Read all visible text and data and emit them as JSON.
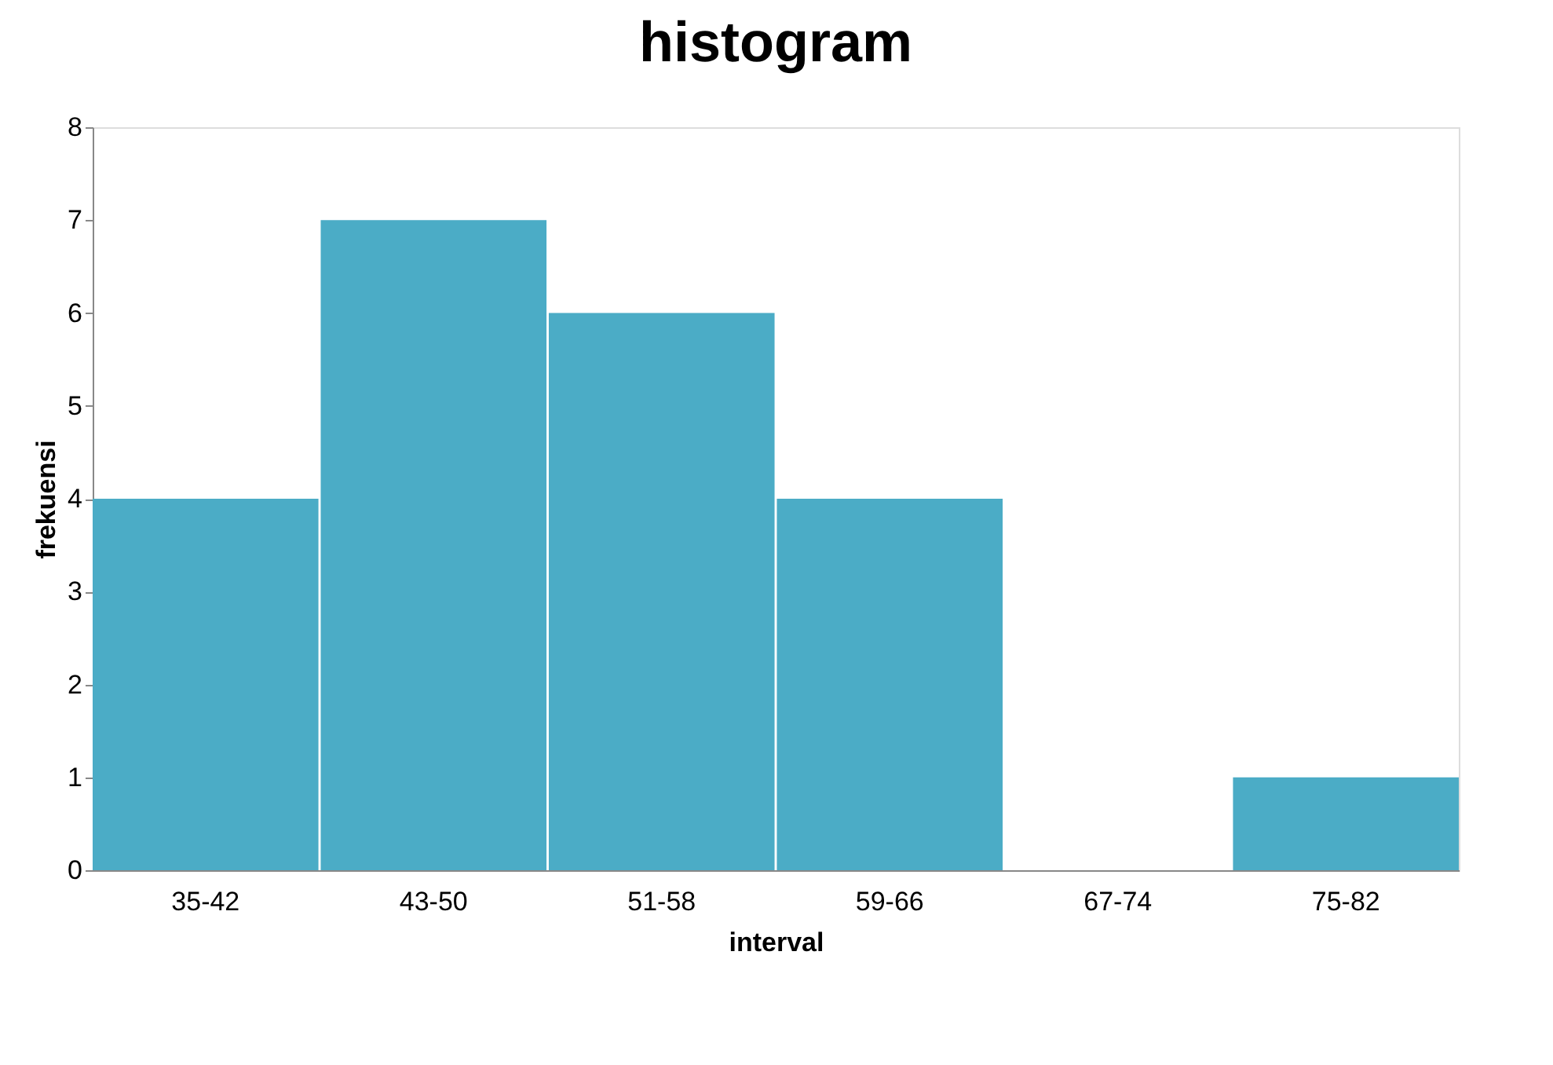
{
  "chart_data": {
    "type": "bar",
    "title": "histogram",
    "xlabel": "interval",
    "ylabel": "frekuensi",
    "categories": [
      "35-42",
      "43-50",
      "51-58",
      "59-66",
      "67-74",
      "75-82"
    ],
    "values": [
      4,
      7,
      6,
      4,
      0,
      1
    ],
    "color": "#4bacc6",
    "ylim": [
      0,
      8
    ],
    "yticks": [
      0,
      1,
      2,
      3,
      4,
      5,
      6,
      7,
      8
    ],
    "grid": false
  }
}
